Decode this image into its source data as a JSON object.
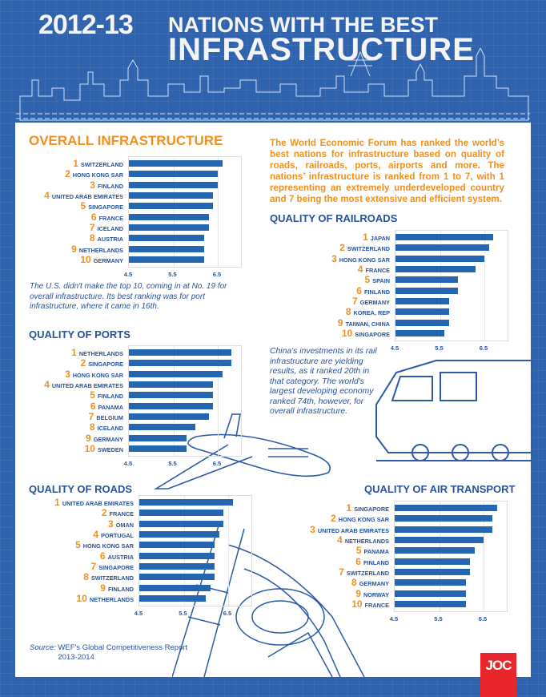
{
  "header": {
    "year": "2012-13",
    "line1": "NATIONS WITH THE BEST",
    "line2": "INFRASTRUCTURE"
  },
  "intro": "The World Economic Forum has ranked the world’s best nations for infrastructure based on quality of roads, railroads, ports, airports and more. The nations’ infrastructure is ranked from 1 to 7, with 1 representing an extremely underdeveloped country and 7 being the most extensive and efficient system.",
  "notes": {
    "us": "The U.S. didn't make the top 10, coming in at No. 19 for overall infrastructure. Its best ranking was for port infrastructure, where it came in 16th.",
    "china": "China's investments in its rail infrastructure are yielding results, as it ranked 20th in that category. The world's largest developing economy ranked 74th, however, for overall infrastructure."
  },
  "source": {
    "label": "Source:",
    "text": "WEF's Global Competitiveness Report 2013-2014"
  },
  "logo": "JOC",
  "colors": {
    "background": "#2f63ae",
    "bar": "#2566b0",
    "accent": "#f0901e",
    "text": "#27529c",
    "logo": "#e8262b"
  },
  "chart_data": [
    {
      "type": "bar",
      "orientation": "horizontal",
      "title": "OVERALL INFRASTRUCTURE",
      "ranks": [
        "1",
        "2",
        "3",
        "4",
        "5",
        "6",
        "7",
        "8",
        "9",
        "10"
      ],
      "categories": [
        "SWITZERLAND",
        "HONG KONG SAR",
        "FINLAND",
        "UNITED ARAB EMIRATES",
        "SINGAPORE",
        "FRANCE",
        "ICELAND",
        "AUSTRIA",
        "NETHERLANDS",
        "GERMANY"
      ],
      "values": [
        6.6,
        6.5,
        6.5,
        6.4,
        6.4,
        6.3,
        6.3,
        6.2,
        6.2,
        6.2
      ],
      "xlim": [
        4.5,
        7.0
      ],
      "xticks": [
        "4.5",
        "5.5",
        "6.5"
      ],
      "grid": true
    },
    {
      "type": "bar",
      "orientation": "horizontal",
      "title": "QUALITY OF RAILROADS",
      "ranks": [
        "1",
        "2",
        "3",
        "4",
        "5",
        "6",
        "7",
        "8",
        "9",
        "10"
      ],
      "categories": [
        "JAPAN",
        "SWITZERLAND",
        "HONG KONG SAR",
        "FRANCE",
        "SPAIN",
        "FINLAND",
        "GERMANY",
        "KOREA, REP",
        "TAIWAN, CHINA",
        "SINGAPORE"
      ],
      "values": [
        6.7,
        6.6,
        6.5,
        6.3,
        5.9,
        5.9,
        5.7,
        5.7,
        5.7,
        5.6
      ],
      "xlim": [
        4.5,
        7.0
      ],
      "xticks": [
        "4.5",
        "5.5",
        "6.5"
      ],
      "grid": true
    },
    {
      "type": "bar",
      "orientation": "horizontal",
      "title": "QUALITY OF PORTS",
      "ranks": [
        "1",
        "2",
        "3",
        "4",
        "5",
        "6",
        "7",
        "8",
        "9",
        "10"
      ],
      "categories": [
        "NETHERLANDS",
        "SINGAPORE",
        "HONG KONG SAR",
        "UNITED ARAB EMIRATES",
        "FINLAND",
        "PANAMA",
        "BELGIUM",
        "ICELAND",
        "GERMANY",
        "SWEDEN"
      ],
      "values": [
        6.8,
        6.8,
        6.6,
        6.4,
        6.4,
        6.4,
        6.3,
        6.0,
        5.8,
        5.8
      ],
      "xlim": [
        4.5,
        7.0
      ],
      "xticks": [
        "4.5",
        "5.5",
        "6.5"
      ],
      "grid": true
    },
    {
      "type": "bar",
      "orientation": "horizontal",
      "title": "QUALITY OF ROADS",
      "ranks": [
        "1",
        "2",
        "3",
        "4",
        "5",
        "6",
        "7",
        "8",
        "9",
        "10"
      ],
      "categories": [
        "UNITED ARAB EMIRATES",
        "FRANCE",
        "OMAN",
        "PORTUGAL",
        "HONG KONG SAR",
        "AUSTRIA",
        "SINGAPORE",
        "SWITZERLAND",
        "FINLAND",
        "NETHERLANDS"
      ],
      "values": [
        6.6,
        6.4,
        6.4,
        6.3,
        6.2,
        6.2,
        6.2,
        6.2,
        6.1,
        6.0
      ],
      "xlim": [
        4.5,
        7.0
      ],
      "xticks": [
        "4.5",
        "5.5",
        "6.5"
      ],
      "grid": true
    },
    {
      "type": "bar",
      "orientation": "horizontal",
      "title": "QUALITY OF AIR TRANSPORT",
      "ranks": [
        "1",
        "2",
        "3",
        "4",
        "5",
        "6",
        "7",
        "8",
        "9",
        "10"
      ],
      "categories": [
        "SINGAPORE",
        "HONG KONG SAR",
        "UNITED ARAB EMIRATES",
        "NETHERLANDS",
        "PANAMA",
        "FINLAND",
        "SWITZERLAND",
        "GERMANY",
        "NORWAY",
        "FRANCE"
      ],
      "values": [
        6.8,
        6.7,
        6.7,
        6.5,
        6.3,
        6.2,
        6.2,
        6.1,
        6.1,
        6.1
      ],
      "xlim": [
        4.5,
        7.0
      ],
      "xticks": [
        "4.5",
        "5.5",
        "6.5"
      ],
      "grid": true
    }
  ]
}
